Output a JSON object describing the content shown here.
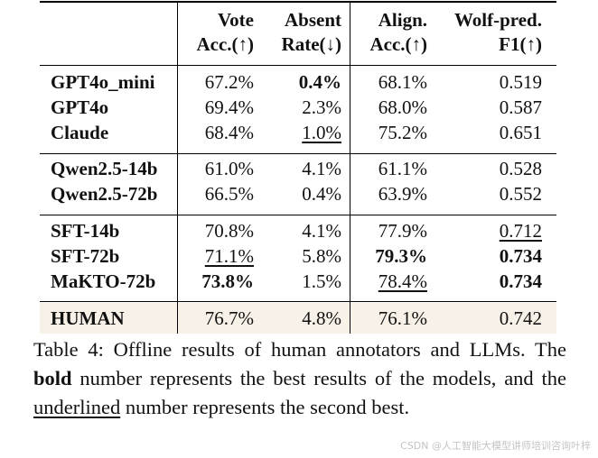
{
  "table": {
    "headers": {
      "vote": [
        "Vote",
        "Acc.(↑)"
      ],
      "absent": [
        "Absent",
        "Rate(↓)"
      ],
      "align": [
        "Align.",
        "Acc.(↑)"
      ],
      "wolf": [
        "Wolf-pred.",
        "F1(↑)"
      ]
    },
    "rows": [
      {
        "model": "GPT4o_mini",
        "vote": "67.2%",
        "absent": "0.4%",
        "align": "68.1%",
        "wolf": "0.519"
      },
      {
        "model": "GPT4o",
        "vote": "69.4%",
        "absent": "2.3%",
        "align": "68.0%",
        "wolf": "0.587"
      },
      {
        "model": "Claude",
        "vote": "68.4%",
        "absent": "1.0%",
        "align": "75.2%",
        "wolf": "0.651"
      },
      {
        "model": "Qwen2.5-14b",
        "vote": "61.0%",
        "absent": "4.1%",
        "align": "61.1%",
        "wolf": "0.528"
      },
      {
        "model": "Qwen2.5-72b",
        "vote": "66.5%",
        "absent": "0.4%",
        "align": "63.9%",
        "wolf": "0.552"
      },
      {
        "model": "SFT-14b",
        "vote": "70.8%",
        "absent": "4.1%",
        "align": "77.9%",
        "wolf": "0.712"
      },
      {
        "model": "SFT-72b",
        "vote": "71.1%",
        "absent": "5.8%",
        "align": "79.3%",
        "wolf": "0.734"
      },
      {
        "model": "MaKTO-72b",
        "vote": "73.8%",
        "absent": "1.5%",
        "align": "78.4%",
        "wolf": "0.734"
      },
      {
        "model": "HUMAN",
        "vote": "76.7%",
        "absent": "4.8%",
        "align": "76.1%",
        "wolf": "0.742"
      }
    ]
  },
  "caption": {
    "p1": "Table 4: Offline results of human annotators and LLMs. The ",
    "bold_word": "bold",
    "p2": " number represents the best results of the models, and the ",
    "underlined_word": "underlined",
    "p3": " number represents the second best."
  },
  "watermark": "CSDN @人工智能大模型讲师培训咨询叶梓"
}
